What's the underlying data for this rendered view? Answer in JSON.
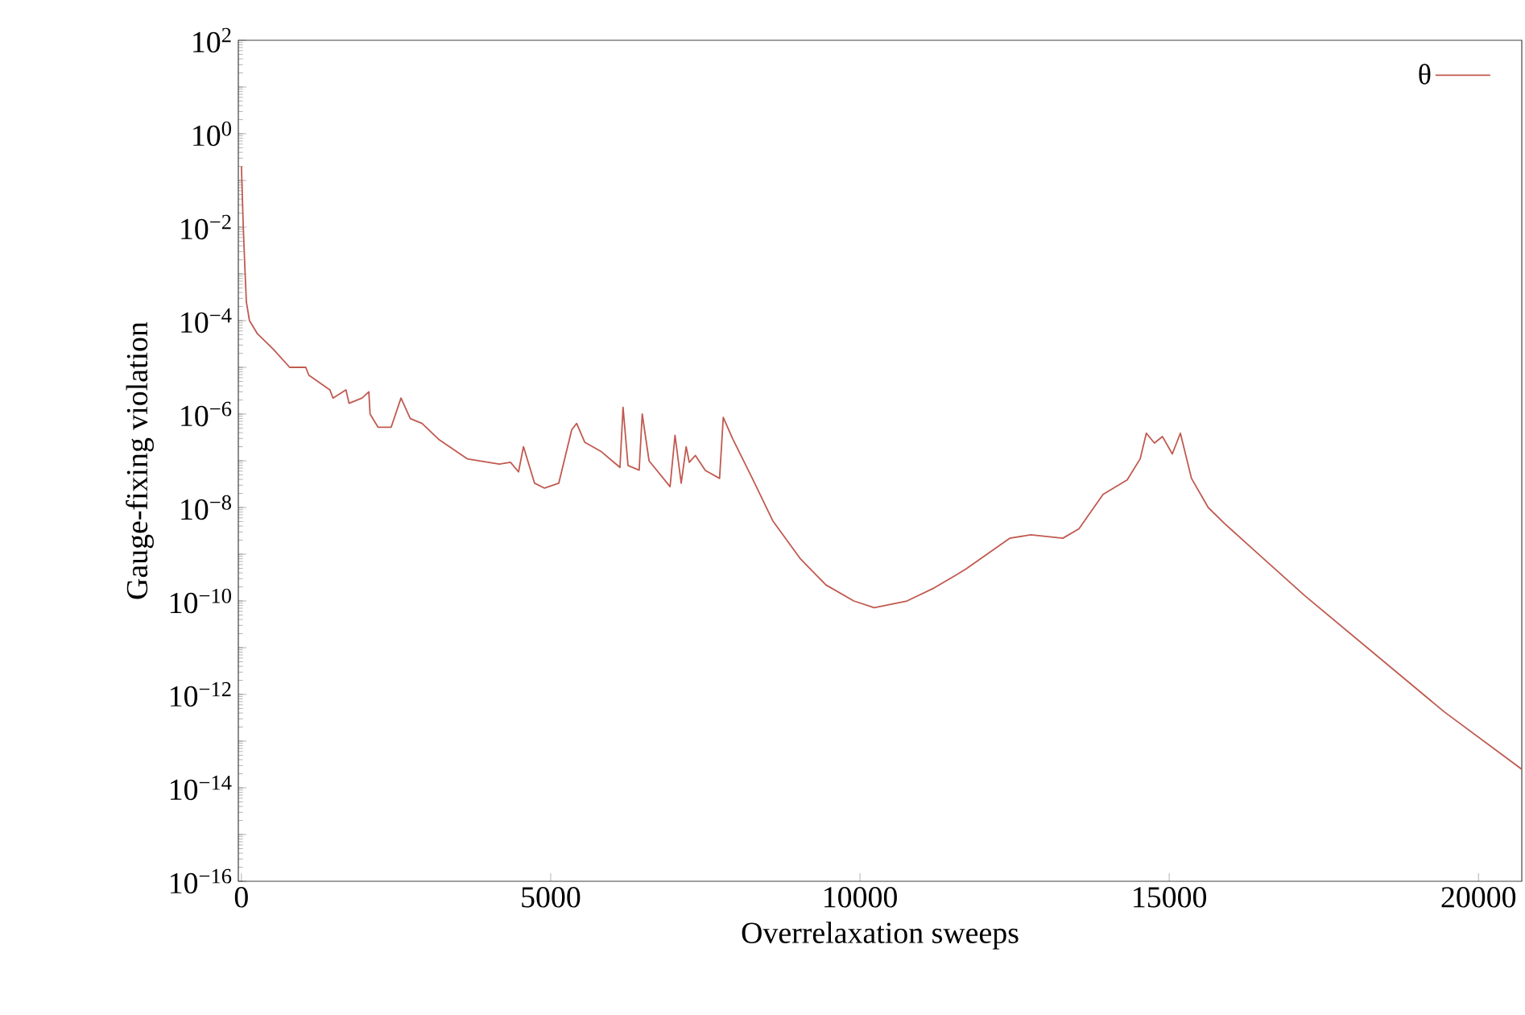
{
  "chart_data": {
    "type": "line",
    "xlabel": "Overrelaxation sweeps",
    "ylabel": "Gauge-fixing violation",
    "xlim": [
      -50,
      20700
    ],
    "ylim": [
      1e-16,
      100.0
    ],
    "xticks": [
      0,
      5000,
      10000,
      15000,
      20000
    ],
    "yticks": [
      {
        "value": 1e-16,
        "label": "10$^{−16}$"
      },
      {
        "value": 1e-15,
        "label": null
      },
      {
        "value": 1e-14,
        "label": "10$^{−14}$"
      },
      {
        "value": 1e-13,
        "label": null
      },
      {
        "value": 1e-12,
        "label": "10$^{−12}$"
      },
      {
        "value": 1e-11,
        "label": null
      },
      {
        "value": 1e-10,
        "label": "10$^{−10}$"
      },
      {
        "value": 1e-09,
        "label": null
      },
      {
        "value": 1e-08,
        "label": "10$^{−8}$"
      },
      {
        "value": 1e-07,
        "label": null
      },
      {
        "value": 1e-06,
        "label": "10$^{−6}$"
      },
      {
        "value": 1e-05,
        "label": null
      },
      {
        "value": 0.0001,
        "label": "10$^{−4}$"
      },
      {
        "value": 0.001,
        "label": null
      },
      {
        "value": 0.01,
        "label": "10$^{−2}$"
      },
      {
        "value": 0.1,
        "label": null
      },
      {
        "value": 1,
        "label": "10$^{0}$"
      },
      {
        "value": 10,
        "label": null
      },
      {
        "value": 100,
        "label": "10$^{2}$"
      }
    ],
    "log": "y",
    "legend": "top right",
    "marker": "none",
    "line_style": "solid",
    "series": [
      {
        "name": "θ",
        "color": "#c05a50",
        "x": [
          0,
          30,
          60,
          80,
          130,
          260,
          520,
          780,
          1040,
          1090,
          1430,
          1480,
          1690,
          1740,
          1950,
          2060,
          2080,
          2210,
          2420,
          2580,
          2730,
          2920,
          3200,
          3650,
          4170,
          4350,
          4480,
          4560,
          4740,
          4900,
          5130,
          5340,
          5420,
          5550,
          5810,
          6120,
          6170,
          6250,
          6430,
          6480,
          6590,
          6930,
          7010,
          7110,
          7190,
          7240,
          7340,
          7500,
          7730,
          7790,
          7940,
          8260,
          8590,
          9040,
          9450,
          9900,
          10230,
          10760,
          11200,
          11540,
          11720,
          12420,
          12760,
          13280,
          13540,
          13930,
          14320,
          14530,
          14630,
          14760,
          14890,
          15050,
          15180,
          15360,
          15630,
          15890,
          16410,
          17190,
          19450,
          20700
        ],
        "values": [
          0.2,
          0.01,
          0.001,
          0.00025,
          0.0001,
          5.2e-05,
          2.4e-05,
          1e-05,
          1e-05,
          6.8e-06,
          3.3e-06,
          2.2e-06,
          3.3e-06,
          1.7e-06,
          2.2e-06,
          3e-06,
          1e-06,
          5.2e-07,
          5.2e-07,
          2.2e-06,
          8e-07,
          6.3e-07,
          2.8e-07,
          1.1e-07,
          8.5e-08,
          9.3e-08,
          5.8e-08,
          2e-07,
          3.3e-08,
          2.6e-08,
          3.3e-08,
          4.6e-07,
          6.3e-07,
          2.5e-07,
          1.6e-07,
          7.2e-08,
          1.4e-06,
          7.9e-08,
          6.3e-08,
          1e-06,
          1e-07,
          2.8e-08,
          3.5e-07,
          3.3e-08,
          2e-07,
          9.3e-08,
          1.3e-07,
          6.2e-08,
          4.2e-08,
          8.5e-07,
          3e-07,
          4.2e-08,
          5.2e-09,
          7.9e-10,
          2.2e-10,
          1e-10,
          7.2e-11,
          1e-10,
          1.9e-10,
          3.5e-10,
          4.9e-10,
          2.2e-09,
          2.6e-09,
          2.2e-09,
          3.5e-09,
          1.9e-08,
          3.9e-08,
          1.1e-07,
          3.9e-07,
          2.4e-07,
          3.3e-07,
          1.4e-07,
          3.9e-07,
          4.2e-08,
          1e-08,
          4.6e-09,
          1.1e-09,
          1.3e-10,
          4.2e-13,
          2.5e-14
        ]
      }
    ]
  }
}
